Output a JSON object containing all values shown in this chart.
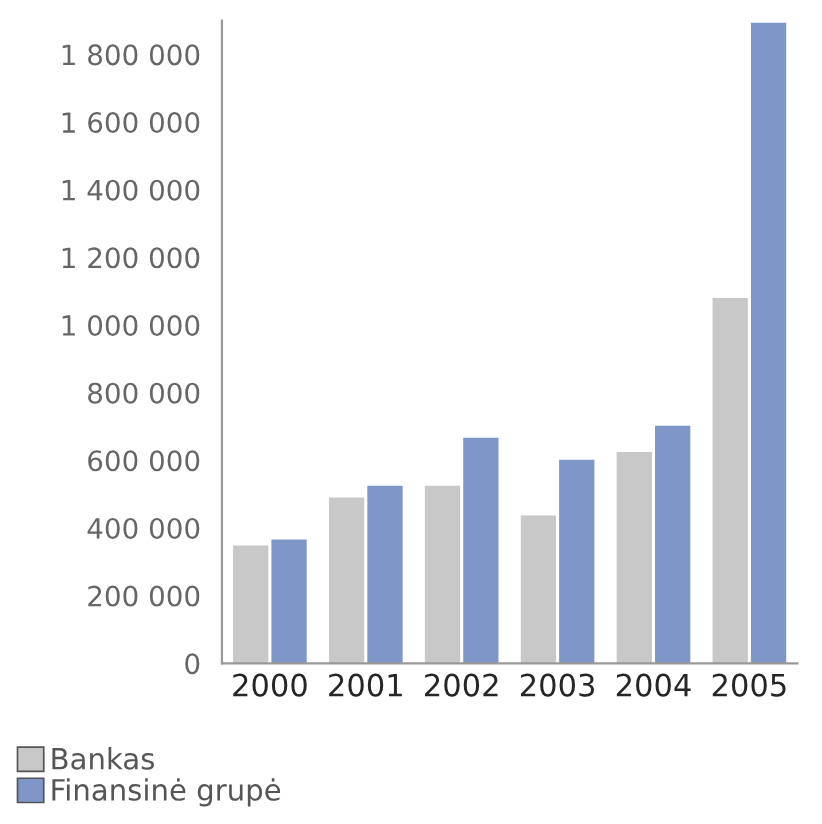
{
  "chart_data": {
    "type": "bar",
    "categories": [
      "2000",
      "2001",
      "2002",
      "2003",
      "2004",
      "2005"
    ],
    "series": [
      {
        "name": "Bankas",
        "color": "#c8c8c8",
        "values": [
          348000,
          490000,
          525000,
          437000,
          625000,
          1080000
        ]
      },
      {
        "name": "Finansinė grupė",
        "color": "#7f96c8",
        "values": [
          366000,
          525000,
          667000,
          602000,
          702000,
          1894000
        ]
      }
    ],
    "ylim": [
      0,
      1900000
    ],
    "yticks": [
      {
        "value": 0,
        "label": "0"
      },
      {
        "value": 200000,
        "label": "200 000"
      },
      {
        "value": 400000,
        "label": "400 000"
      },
      {
        "value": 600000,
        "label": "600 000"
      },
      {
        "value": 800000,
        "label": "800 000"
      },
      {
        "value": 1000000,
        "label": "1 000 000"
      },
      {
        "value": 1200000,
        "label": "1 200 000"
      },
      {
        "value": 1400000,
        "label": "1 400 000"
      },
      {
        "value": 1600000,
        "label": "1 600 000"
      },
      {
        "value": 1800000,
        "label": "1 800 000"
      }
    ],
    "grid": false,
    "legend": "bottom left"
  }
}
